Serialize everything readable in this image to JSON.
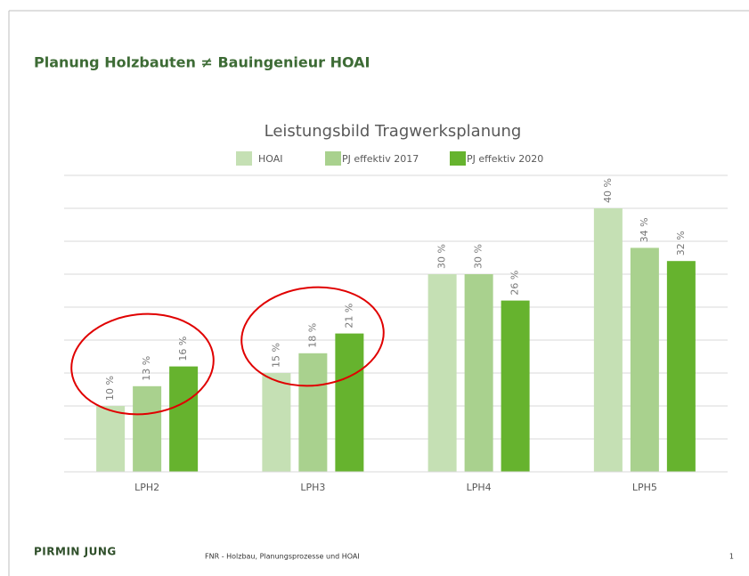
{
  "slide": {
    "title": "Planung Holzbauten ≠ Bauingenieur HOAI",
    "logo": "PIRMIN JUNG",
    "footer": "FNR  - Holzbau, Planungsprozesse und HOAI",
    "page_number": "1"
  },
  "chart_data": {
    "type": "bar",
    "title": "Leistungsbild Tragwerksplanung",
    "categories": [
      "LPH2",
      "LPH3",
      "LPH4",
      "LPH5"
    ],
    "series": [
      {
        "name": "HOAI",
        "color": "#c5e0b4",
        "values": [
          10,
          15,
          30,
          40
        ],
        "value_labels": [
          "10 %",
          "15 %",
          "30 %",
          "40 %"
        ]
      },
      {
        "name": "PJ effektiv 2017",
        "color": "#a9d18e",
        "values": [
          13,
          18,
          30,
          34
        ],
        "value_labels": [
          "13 %",
          "18 %",
          "30 %",
          "34 %"
        ]
      },
      {
        "name": "PJ effektiv 2020",
        "color": "#66b32e",
        "values": [
          16,
          21,
          26,
          32
        ],
        "value_labels": [
          "16 %",
          "21 %",
          "26 %",
          "32 %"
        ]
      }
    ],
    "ylim": [
      0,
      45
    ],
    "yticks": [
      0,
      5,
      10,
      15,
      20,
      25,
      30,
      35,
      40,
      45
    ],
    "grid": true,
    "legend": "top"
  }
}
